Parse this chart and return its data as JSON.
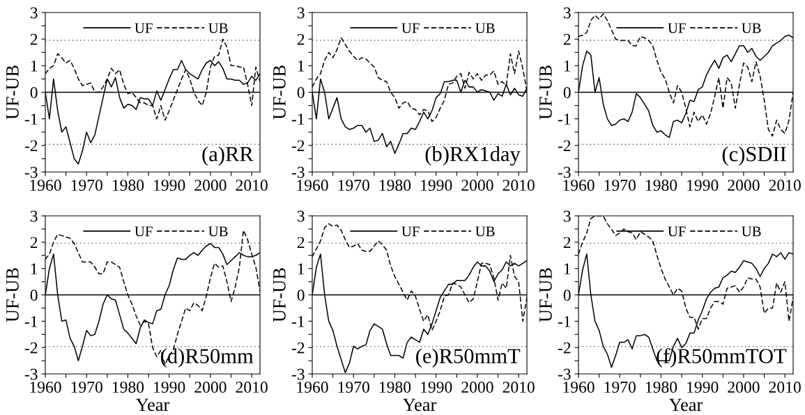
{
  "chart_data": [
    {
      "type": "line",
      "ylabel": "UF-UB",
      "xlim": [
        1960,
        2012
      ],
      "ylim": [
        -3,
        3
      ],
      "legend": "top right",
      "grid": false,
      "annotations": [
        "(a)RR"
      ],
      "xticks": [
        1960,
        {
          "value": 1965,
          "label": null
        },
        1970,
        {
          "value": 1975,
          "label": null
        },
        1980,
        {
          "value": 1985,
          "label": null
        },
        1990,
        {
          "value": 1995,
          "label": null
        },
        2000,
        {
          "value": 2005,
          "label": null
        },
        2010
      ],
      "yticks": [
        -3,
        {
          "value": -2.5,
          "label": null
        },
        -2,
        {
          "value": -1.5,
          "label": null
        },
        -1,
        {
          "value": -0.5,
          "label": null
        },
        0,
        {
          "value": 0.5,
          "label": null
        },
        1,
        {
          "value": 1.5,
          "label": null
        },
        2,
        {
          "value": 2.5,
          "label": null
        },
        3
      ],
      "ref_lines": [
        {
          "axis": "y",
          "value": 1.96,
          "color": "#555555",
          "line_style": "dotted"
        },
        {
          "axis": "y",
          "value": -1.96,
          "color": "#555555",
          "line_style": "dotted"
        },
        {
          "axis": "y",
          "value": 0,
          "color": "#000000",
          "line_style": "solid"
        }
      ],
      "x": [
        1960,
        1961,
        1962,
        1963,
        1964,
        1965,
        1966,
        1967,
        1968,
        1969,
        1970,
        1971,
        1972,
        1973,
        1974,
        1975,
        1976,
        1977,
        1978,
        1979,
        1980,
        1981,
        1982,
        1983,
        1984,
        1985,
        1986,
        1987,
        1988,
        1989,
        1990,
        1991,
        1992,
        1993,
        1994,
        1995,
        1996,
        1997,
        1998,
        1999,
        2000,
        2001,
        2002,
        2003,
        2004,
        2005,
        2006,
        2007,
        2008,
        2009,
        2010,
        2011,
        2012
      ],
      "series": [
        {
          "name": "UF",
          "color": "#000000",
          "line_style": "solid",
          "values": [
            0,
            -1.0,
            0.5,
            -0.7,
            -1.5,
            -1.3,
            -1.9,
            -2.5,
            -2.7,
            -2.2,
            -1.5,
            -1.9,
            -1.6,
            -0.9,
            -0.2,
            0.5,
            0.2,
            0.55,
            -0.2,
            -0.6,
            -0.45,
            -0.5,
            -0.65,
            -0.2,
            -0.25,
            -0.25,
            -0.5,
            0.05,
            -0.3,
            0.1,
            0.5,
            0.85,
            0.85,
            1.2,
            0.85,
            0.7,
            0.6,
            0.5,
            0.85,
            1.1,
            1.2,
            1.0,
            1.15,
            0.9,
            0.5,
            0.5,
            0.45,
            0.45,
            0.3,
            0.35,
            0.6,
            0.45,
            0.7
          ]
        },
        {
          "name": "UB",
          "color": "#000000",
          "line_style": "dashed",
          "values": [
            0.7,
            0.9,
            1.0,
            1.45,
            1.3,
            1.1,
            1.2,
            0.9,
            0.5,
            0.25,
            0.3,
            0.35,
            0.0,
            0.0,
            0.2,
            0.5,
            0.9,
            0.7,
            0.85,
            0.3,
            -0.05,
            0.0,
            -0.2,
            -0.4,
            -0.4,
            -0.5,
            -0.5,
            -1.0,
            -0.5,
            -1.05,
            -0.7,
            -0.3,
            0.1,
            0.5,
            0.85,
            0.5,
            0.0,
            -0.3,
            -0.5,
            0.0,
            0.95,
            1.35,
            1.4,
            2.0,
            1.7,
            1.0,
            1.0,
            0.95,
            0.95,
            0.3,
            -0.5,
            0.95,
            0.4
          ]
        }
      ]
    },
    {
      "type": "line",
      "ylabel": "UF-UB",
      "xlim": [
        1960,
        2012
      ],
      "ylim": [
        -3,
        3
      ],
      "legend": "top right",
      "grid": false,
      "annotations": [
        "(b)RX1day"
      ],
      "xticks": [
        1960,
        {
          "value": 1965,
          "label": null
        },
        1970,
        {
          "value": 1975,
          "label": null
        },
        1980,
        {
          "value": 1985,
          "label": null
        },
        1990,
        {
          "value": 1995,
          "label": null
        },
        2000,
        {
          "value": 2005,
          "label": null
        },
        2010
      ],
      "yticks": [
        -3,
        {
          "value": -2.5,
          "label": null
        },
        -2,
        {
          "value": -1.5,
          "label": null
        },
        -1,
        {
          "value": -0.5,
          "label": null
        },
        0,
        {
          "value": 0.5,
          "label": null
        },
        1,
        {
          "value": 1.5,
          "label": null
        },
        2,
        {
          "value": 2.5,
          "label": null
        },
        3
      ],
      "ref_lines": [
        {
          "axis": "y",
          "value": 1.96,
          "color": "#555555",
          "line_style": "dotted"
        },
        {
          "axis": "y",
          "value": -1.96,
          "color": "#555555",
          "line_style": "dotted"
        },
        {
          "axis": "y",
          "value": 0,
          "color": "#000000",
          "line_style": "solid"
        }
      ],
      "x": [
        1960,
        1961,
        1962,
        1963,
        1964,
        1965,
        1966,
        1967,
        1968,
        1969,
        1970,
        1971,
        1972,
        1973,
        1974,
        1975,
        1976,
        1977,
        1978,
        1979,
        1980,
        1981,
        1982,
        1983,
        1984,
        1985,
        1986,
        1987,
        1988,
        1989,
        1990,
        1991,
        1992,
        1993,
        1994,
        1995,
        1996,
        1997,
        1998,
        1999,
        2000,
        2001,
        2002,
        2003,
        2004,
        2005,
        2006,
        2007,
        2008,
        2009,
        2010,
        2011,
        2012
      ],
      "series": [
        {
          "name": "UF",
          "color": "#000000",
          "line_style": "solid",
          "values": [
            0,
            -1.0,
            0.5,
            0.0,
            -1.0,
            -0.6,
            -0.2,
            -1.0,
            -1.3,
            -1.4,
            -1.35,
            -1.25,
            -1.25,
            -1.5,
            -1.35,
            -1.85,
            -1.8,
            -1.55,
            -2.05,
            -1.85,
            -2.3,
            -1.95,
            -1.55,
            -1.55,
            -1.35,
            -1.4,
            -1.1,
            -0.75,
            -1.0,
            -0.7,
            -0.2,
            -0.05,
            0.4,
            0.4,
            0.45,
            0.45,
            0.0,
            0.45,
            0.2,
            0.2,
            0.0,
            0.1,
            0.05,
            0.0,
            -0.3,
            -0.05,
            -0.15,
            0.3,
            -0.1,
            0.15,
            -0.1,
            -0.15,
            0.15
          ]
        },
        {
          "name": "UB",
          "color": "#000000",
          "line_style": "dashed",
          "values": [
            0.2,
            0.5,
            0.7,
            1.2,
            1.5,
            1.3,
            1.6,
            2.05,
            1.8,
            1.55,
            1.35,
            1.2,
            1.3,
            1.25,
            1.1,
            0.95,
            0.55,
            0.45,
            0.4,
            0.0,
            -0.2,
            -0.6,
            -0.4,
            -0.35,
            -0.6,
            -0.65,
            -0.85,
            -0.65,
            -0.7,
            -1.1,
            -0.95,
            -0.6,
            -0.3,
            0.3,
            0.35,
            0.6,
            0.7,
            0.15,
            0.75,
            0.5,
            0.7,
            0.45,
            0.65,
            0.65,
            0.8,
            0.3,
            0.4,
            0.25,
            1.45,
            0.7,
            1.55,
            0.9,
            0.05
          ]
        }
      ]
    },
    {
      "type": "line",
      "ylabel": "UF-UB",
      "xlim": [
        1960,
        2012
      ],
      "ylim": [
        -3,
        3
      ],
      "legend": "top right",
      "grid": false,
      "annotations": [
        "(c)SDII"
      ],
      "xticks": [
        1960,
        {
          "value": 1965,
          "label": null
        },
        1970,
        {
          "value": 1975,
          "label": null
        },
        1980,
        {
          "value": 1985,
          "label": null
        },
        1990,
        {
          "value": 1995,
          "label": null
        },
        2000,
        {
          "value": 2005,
          "label": null
        },
        2010
      ],
      "yticks": [
        -3,
        {
          "value": -2.5,
          "label": null
        },
        -2,
        {
          "value": -1.5,
          "label": null
        },
        -1,
        {
          "value": -0.5,
          "label": null
        },
        0,
        {
          "value": 0.5,
          "label": null
        },
        1,
        {
          "value": 1.5,
          "label": null
        },
        2,
        {
          "value": 2.5,
          "label": null
        },
        3
      ],
      "ref_lines": [
        {
          "axis": "y",
          "value": 1.96,
          "color": "#555555",
          "line_style": "dotted"
        },
        {
          "axis": "y",
          "value": -1.96,
          "color": "#555555",
          "line_style": "dotted"
        },
        {
          "axis": "y",
          "value": 0,
          "color": "#000000",
          "line_style": "solid"
        }
      ],
      "x": [
        1960,
        1961,
        1962,
        1963,
        1964,
        1965,
        1966,
        1967,
        1968,
        1969,
        1970,
        1971,
        1972,
        1973,
        1974,
        1975,
        1976,
        1977,
        1978,
        1979,
        1980,
        1981,
        1982,
        1983,
        1984,
        1985,
        1986,
        1987,
        1988,
        1989,
        1990,
        1991,
        1992,
        1993,
        1994,
        1995,
        1996,
        1997,
        1998,
        1999,
        2000,
        2001,
        2002,
        2003,
        2004,
        2005,
        2006,
        2007,
        2008,
        2009,
        2010,
        2011,
        2012
      ],
      "series": [
        {
          "name": "UF",
          "color": "#000000",
          "line_style": "solid",
          "values": [
            0,
            1.0,
            1.55,
            1.4,
            0.0,
            0.55,
            -0.45,
            -1.0,
            -1.25,
            -1.2,
            -1.05,
            -1.0,
            -1.1,
            -0.75,
            -0.05,
            -0.2,
            -0.45,
            -0.7,
            -1.25,
            -1.5,
            -1.45,
            -1.6,
            -1.7,
            -1.1,
            -1.05,
            -1.15,
            -0.8,
            -0.3,
            -0.35,
            0.1,
            0.2,
            0.65,
            0.95,
            1.2,
            0.9,
            1.3,
            1.4,
            1.15,
            1.45,
            1.75,
            1.75,
            1.5,
            1.65,
            1.35,
            1.2,
            1.35,
            1.5,
            1.75,
            1.85,
            1.95,
            2.1,
            2.15,
            2.05
          ]
        },
        {
          "name": "UB",
          "color": "#000000",
          "line_style": "dashed",
          "values": [
            2.1,
            2.15,
            2.25,
            2.7,
            2.9,
            2.75,
            2.95,
            2.7,
            2.35,
            2.0,
            1.95,
            1.95,
            1.95,
            1.75,
            1.75,
            2.1,
            2.05,
            1.95,
            1.75,
            1.2,
            0.75,
            0.5,
            0.0,
            -0.4,
            0.25,
            0.0,
            -0.6,
            -1.3,
            -0.75,
            -1.1,
            -0.85,
            -1.2,
            -0.8,
            -0.15,
            0.55,
            -0.6,
            0.55,
            0.35,
            -0.6,
            0.3,
            1.1,
            0.95,
            0.4,
            1.15,
            0.6,
            -0.3,
            -1.4,
            -1.65,
            -1.05,
            -1.4,
            -1.55,
            -1.05,
            0.0
          ]
        }
      ]
    },
    {
      "type": "line",
      "ylabel": "UF-UB",
      "xlabel": "Year",
      "xlim": [
        1960,
        2012
      ],
      "ylim": [
        -3,
        3
      ],
      "legend": "top right",
      "grid": false,
      "annotations": [
        "(d)R50mm"
      ],
      "xticks": [
        1960,
        {
          "value": 1965,
          "label": null
        },
        1970,
        {
          "value": 1975,
          "label": null
        },
        1980,
        {
          "value": 1985,
          "label": null
        },
        1990,
        {
          "value": 1995,
          "label": null
        },
        2000,
        {
          "value": 2005,
          "label": null
        },
        2010
      ],
      "yticks": [
        -3,
        {
          "value": -2.5,
          "label": null
        },
        -2,
        {
          "value": -1.5,
          "label": null
        },
        -1,
        {
          "value": -0.5,
          "label": null
        },
        0,
        {
          "value": 0.5,
          "label": null
        },
        1,
        {
          "value": 1.5,
          "label": null
        },
        2,
        {
          "value": 2.5,
          "label": null
        },
        3
      ],
      "ref_lines": [
        {
          "axis": "y",
          "value": 1.96,
          "color": "#555555",
          "line_style": "dotted"
        },
        {
          "axis": "y",
          "value": -1.96,
          "color": "#555555",
          "line_style": "dotted"
        },
        {
          "axis": "y",
          "value": 0,
          "color": "#000000",
          "line_style": "solid"
        }
      ],
      "x": [
        1960,
        1961,
        1962,
        1963,
        1964,
        1965,
        1966,
        1967,
        1968,
        1969,
        1970,
        1971,
        1972,
        1973,
        1974,
        1975,
        1976,
        1977,
        1978,
        1979,
        1980,
        1981,
        1982,
        1983,
        1984,
        1985,
        1986,
        1987,
        1988,
        1989,
        1990,
        1991,
        1992,
        1993,
        1994,
        1995,
        1996,
        1997,
        1998,
        1999,
        2000,
        2001,
        2002,
        2003,
        2004,
        2005,
        2006,
        2007,
        2008,
        2009,
        2010,
        2011,
        2012
      ],
      "series": [
        {
          "name": "UF",
          "color": "#000000",
          "line_style": "solid",
          "values": [
            0,
            1.0,
            1.55,
            0.0,
            -1.0,
            -0.95,
            -1.65,
            -1.95,
            -2.5,
            -1.95,
            -1.35,
            -1.55,
            -1.5,
            -1.0,
            -0.35,
            0.0,
            -0.15,
            -0.2,
            -0.75,
            -1.3,
            -1.45,
            -1.65,
            -1.85,
            -1.25,
            -0.95,
            -1.05,
            -1.1,
            -0.6,
            -0.55,
            0.0,
            0.35,
            0.95,
            1.4,
            1.35,
            1.35,
            1.5,
            1.6,
            1.5,
            1.7,
            1.85,
            1.95,
            1.8,
            1.8,
            1.55,
            1.15,
            1.3,
            1.45,
            1.6,
            1.5,
            1.45,
            1.45,
            1.5,
            1.6
          ]
        },
        {
          "name": "UB",
          "color": "#000000",
          "line_style": "dashed",
          "values": [
            1.35,
            1.55,
            2.0,
            2.3,
            2.25,
            2.2,
            2.15,
            1.95,
            1.6,
            1.25,
            1.25,
            1.25,
            1.05,
            0.8,
            0.8,
            1.25,
            1.25,
            1.15,
            1.05,
            0.5,
            0.0,
            -0.35,
            -0.8,
            -1.15,
            -1.0,
            -1.1,
            -2.0,
            -2.35,
            -2.1,
            -2.65,
            -2.3,
            -2.1,
            -1.5,
            -1.0,
            -0.5,
            -0.6,
            -0.3,
            -0.4,
            -0.6,
            -0.05,
            0.65,
            1.2,
            1.05,
            1.1,
            0.5,
            -0.25,
            0.3,
            1.05,
            2.45,
            2.1,
            1.55,
            1.05,
            0.15
          ]
        }
      ]
    },
    {
      "type": "line",
      "ylabel": "UF-UB",
      "xlabel": "Year",
      "xlim": [
        1960,
        2012
      ],
      "ylim": [
        -3,
        3
      ],
      "legend": "top right",
      "grid": false,
      "annotations": [
        "(e)R50mmT"
      ],
      "xticks": [
        1960,
        {
          "value": 1965,
          "label": null
        },
        1970,
        {
          "value": 1975,
          "label": null
        },
        1980,
        {
          "value": 1985,
          "label": null
        },
        1990,
        {
          "value": 1995,
          "label": null
        },
        2000,
        {
          "value": 2005,
          "label": null
        },
        2010
      ],
      "yticks": [
        -3,
        {
          "value": -2.5,
          "label": null
        },
        -2,
        {
          "value": -1.5,
          "label": null
        },
        -1,
        {
          "value": -0.5,
          "label": null
        },
        0,
        {
          "value": 0.5,
          "label": null
        },
        1,
        {
          "value": 1.5,
          "label": null
        },
        2,
        {
          "value": 2.5,
          "label": null
        },
        3
      ],
      "ref_lines": [
        {
          "axis": "y",
          "value": 1.96,
          "color": "#555555",
          "line_style": "dotted"
        },
        {
          "axis": "y",
          "value": -1.96,
          "color": "#555555",
          "line_style": "dotted"
        },
        {
          "axis": "y",
          "value": 0,
          "color": "#000000",
          "line_style": "solid"
        }
      ],
      "x": [
        1960,
        1961,
        1962,
        1963,
        1964,
        1965,
        1966,
        1967,
        1968,
        1969,
        1970,
        1971,
        1972,
        1973,
        1974,
        1975,
        1976,
        1977,
        1978,
        1979,
        1980,
        1981,
        1982,
        1983,
        1984,
        1985,
        1986,
        1987,
        1988,
        1989,
        1990,
        1991,
        1992,
        1993,
        1994,
        1995,
        1996,
        1997,
        1998,
        1999,
        2000,
        2001,
        2002,
        2003,
        2004,
        2005,
        2006,
        2007,
        2008,
        2009,
        2010,
        2011,
        2012
      ],
      "series": [
        {
          "name": "UF",
          "color": "#000000",
          "line_style": "solid",
          "values": [
            0,
            1.05,
            1.55,
            0.0,
            -1.0,
            -1.35,
            -1.95,
            -2.45,
            -2.95,
            -2.6,
            -1.95,
            -2.05,
            -1.95,
            -1.9,
            -1.35,
            -1.1,
            -1.2,
            -1.3,
            -1.85,
            -2.3,
            -2.3,
            -2.3,
            -2.4,
            -1.8,
            -1.6,
            -1.7,
            -1.8,
            -1.3,
            -1.5,
            -1.1,
            -0.6,
            -0.1,
            0.15,
            0.4,
            0.4,
            0.55,
            0.55,
            0.55,
            0.75,
            1.05,
            1.25,
            1.1,
            1.1,
            0.9,
            0.5,
            0.8,
            0.95,
            1.25,
            1.1,
            1.2,
            1.1,
            1.2,
            1.3
          ]
        },
        {
          "name": "UB",
          "color": "#000000",
          "line_style": "dashed",
          "values": [
            1.45,
            1.75,
            2.05,
            2.55,
            2.7,
            2.6,
            2.65,
            2.45,
            2.1,
            1.8,
            1.85,
            1.95,
            1.7,
            1.65,
            1.65,
            1.85,
            2.05,
            1.9,
            1.7,
            1.1,
            0.7,
            0.4,
            0.1,
            -0.2,
            0.15,
            -0.05,
            -0.55,
            -1.0,
            -0.75,
            -1.35,
            -1.0,
            -0.6,
            -0.05,
            0.0,
            0.45,
            0.4,
            0.3,
            0.0,
            -0.3,
            -0.15,
            0.5,
            1.2,
            1.2,
            1.15,
            0.65,
            -0.2,
            0.45,
            0.25,
            1.5,
            0.7,
            0.5,
            -1.0,
            -0.1
          ]
        }
      ]
    },
    {
      "type": "line",
      "ylabel": "UF-UB",
      "xlabel": "Year",
      "xlim": [
        1960,
        2012
      ],
      "ylim": [
        -3,
        3
      ],
      "legend": "top right",
      "grid": false,
      "annotations": [
        "(f)R50mmTOT"
      ],
      "xticks": [
        1960,
        {
          "value": 1965,
          "label": null
        },
        1970,
        {
          "value": 1975,
          "label": null
        },
        1980,
        {
          "value": 1985,
          "label": null
        },
        1990,
        {
          "value": 1995,
          "label": null
        },
        2000,
        {
          "value": 2005,
          "label": null
        },
        2010
      ],
      "yticks": [
        -3,
        {
          "value": -2.5,
          "label": null
        },
        -2,
        {
          "value": -1.5,
          "label": null
        },
        -1,
        {
          "value": -0.5,
          "label": null
        },
        0,
        {
          "value": 0.5,
          "label": null
        },
        1,
        {
          "value": 1.5,
          "label": null
        },
        2,
        {
          "value": 2.5,
          "label": null
        },
        3
      ],
      "ref_lines": [
        {
          "axis": "y",
          "value": 1.96,
          "color": "#555555",
          "line_style": "dotted"
        },
        {
          "axis": "y",
          "value": -1.96,
          "color": "#555555",
          "line_style": "dotted"
        },
        {
          "axis": "y",
          "value": 0,
          "color": "#000000",
          "line_style": "solid"
        }
      ],
      "x": [
        1960,
        1961,
        1962,
        1963,
        1964,
        1965,
        1966,
        1967,
        1968,
        1969,
        1970,
        1971,
        1972,
        1973,
        1974,
        1975,
        1976,
        1977,
        1978,
        1979,
        1980,
        1981,
        1982,
        1983,
        1984,
        1985,
        1986,
        1987,
        1988,
        1989,
        1990,
        1991,
        1992,
        1993,
        1994,
        1995,
        1996,
        1997,
        1998,
        1999,
        2000,
        2001,
        2002,
        2003,
        2004,
        2005,
        2006,
        2007,
        2008,
        2009,
        2010,
        2011,
        2012
      ],
      "series": [
        {
          "name": "UF",
          "color": "#000000",
          "line_style": "solid",
          "values": [
            0,
            0.95,
            1.55,
            0.0,
            -1.0,
            -1.35,
            -1.95,
            -2.25,
            -2.75,
            -2.3,
            -1.8,
            -1.8,
            -1.7,
            -2.05,
            -1.55,
            -1.55,
            -1.5,
            -1.6,
            -2.05,
            -2.5,
            -2.5,
            -2.5,
            -2.5,
            -1.95,
            -1.65,
            -2.0,
            -1.85,
            -1.45,
            -1.45,
            -0.95,
            -0.6,
            -0.15,
            0.1,
            0.25,
            0.3,
            0.65,
            0.75,
            0.9,
            0.85,
            1.05,
            1.3,
            1.25,
            1.2,
            1.0,
            0.7,
            1.0,
            1.2,
            1.55,
            1.45,
            1.6,
            1.35,
            1.6,
            1.55
          ]
        },
        {
          "name": "UB",
          "color": "#000000",
          "line_style": "dashed",
          "values": [
            1.55,
            2.0,
            2.35,
            2.9,
            3.0,
            3.0,
            3.0,
            2.7,
            2.5,
            2.25,
            2.35,
            2.5,
            2.4,
            2.35,
            2.1,
            2.4,
            2.3,
            2.2,
            2.05,
            1.5,
            1.0,
            0.6,
            0.3,
            0.0,
            0.25,
            0.15,
            -0.5,
            -0.85,
            -0.85,
            -1.3,
            -0.9,
            -0.9,
            -0.5,
            -0.25,
            -0.25,
            -0.35,
            0.25,
            0.3,
            0.35,
            0.1,
            0.3,
            0.65,
            0.6,
            0.6,
            0.3,
            -0.7,
            -0.5,
            -0.5,
            0.45,
            0.1,
            0.5,
            -1.0,
            -0.1
          ]
        }
      ]
    }
  ]
}
